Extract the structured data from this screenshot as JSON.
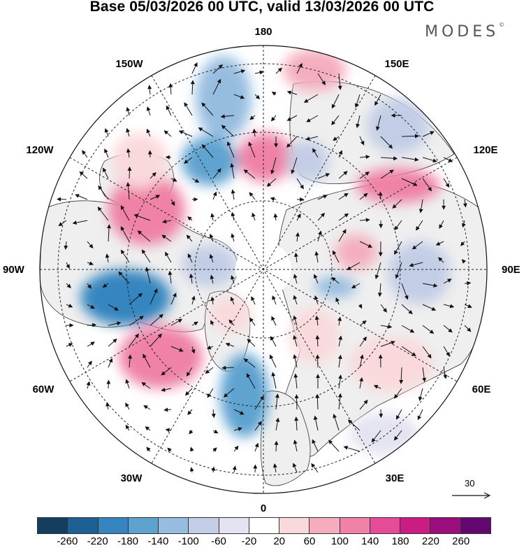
{
  "title": "Base 05/03/2026 00 UTC, valid 13/03/2026 00 UTC",
  "brand": "MODES",
  "brand_mark": "©",
  "longitudes": {
    "lon_180": "180",
    "lon_150e": "150E",
    "lon_120e": "120E",
    "lon_90e": "90E",
    "lon_60e": "60E",
    "lon_30e": "30E",
    "lon_0": "0",
    "lon_30w": "30W",
    "lon_60w": "60W",
    "lon_90w": "90W",
    "lon_120w": "120W",
    "lon_150w": "150W"
  },
  "vector_scale": "30",
  "colorbar": {
    "colors": [
      "#143d5e",
      "#1d6194",
      "#3685c0",
      "#5ea3d0",
      "#96bde0",
      "#c3cde6",
      "#e4e3f1",
      "#ffffff",
      "#fad9dc",
      "#f4adbd",
      "#ef82a6",
      "#e54b97",
      "#c91d84",
      "#9a0f7d",
      "#62086e"
    ],
    "ticks": [
      "-260",
      "-220",
      "-180",
      "-140",
      "-100",
      "-60",
      "-20",
      "20",
      "60",
      "100",
      "140",
      "180",
      "220",
      "260"
    ]
  },
  "legend": {
    "land_fill": "#efefef"
  }
}
